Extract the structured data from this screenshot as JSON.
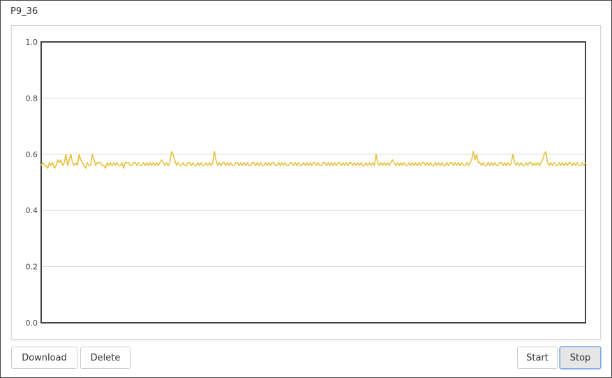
{
  "title": "P9_36",
  "buttons": {
    "download": "Download",
    "delete": "Delete",
    "start": "Start",
    "stop": "Stop"
  },
  "colors": {
    "series": "#e6c13e",
    "grid": "#d9d9d9",
    "axis": "#444444"
  },
  "chart_data": {
    "type": "line",
    "title": "",
    "xlabel": "",
    "ylabel": "",
    "ylim": [
      0,
      1
    ],
    "yticks": [
      "0.0",
      "0.2",
      "0.4",
      "0.6",
      "0.8",
      "1.0"
    ],
    "grid": true,
    "series": [
      {
        "name": "",
        "color": "#e6c13e",
        "values": [
          0.56,
          0.57,
          0.56,
          0.56,
          0.55,
          0.57,
          0.56,
          0.57,
          0.55,
          0.56,
          0.58,
          0.57,
          0.58,
          0.56,
          0.57,
          0.6,
          0.56,
          0.58,
          0.6,
          0.57,
          0.56,
          0.57,
          0.56,
          0.6,
          0.58,
          0.57,
          0.56,
          0.55,
          0.57,
          0.56,
          0.56,
          0.6,
          0.58,
          0.56,
          0.57,
          0.57,
          0.57,
          0.56,
          0.56,
          0.55,
          0.57,
          0.56,
          0.57,
          0.56,
          0.57,
          0.56,
          0.57,
          0.56,
          0.56,
          0.57,
          0.55,
          0.57,
          0.57,
          0.57,
          0.56,
          0.56,
          0.57,
          0.57,
          0.56,
          0.57,
          0.56,
          0.56,
          0.57,
          0.56,
          0.57,
          0.56,
          0.57,
          0.56,
          0.57,
          0.56,
          0.57,
          0.56,
          0.57,
          0.58,
          0.57,
          0.56,
          0.57,
          0.56,
          0.57,
          0.61,
          0.6,
          0.58,
          0.56,
          0.57,
          0.56,
          0.56,
          0.57,
          0.56,
          0.56,
          0.57,
          0.57,
          0.56,
          0.57,
          0.56,
          0.56,
          0.57,
          0.56,
          0.57,
          0.56,
          0.56,
          0.57,
          0.56,
          0.57,
          0.56,
          0.57,
          0.61,
          0.58,
          0.56,
          0.57,
          0.56,
          0.57,
          0.57,
          0.56,
          0.57,
          0.56,
          0.57,
          0.56,
          0.56,
          0.57,
          0.57,
          0.56,
          0.57,
          0.56,
          0.57,
          0.56,
          0.57,
          0.56,
          0.56,
          0.57,
          0.57,
          0.56,
          0.57,
          0.56,
          0.57,
          0.56,
          0.56,
          0.57,
          0.56,
          0.57,
          0.56,
          0.57,
          0.57,
          0.56,
          0.56,
          0.57,
          0.56,
          0.57,
          0.56,
          0.57,
          0.56,
          0.56,
          0.57,
          0.57,
          0.56,
          0.57,
          0.56,
          0.57,
          0.56,
          0.56,
          0.57,
          0.56,
          0.57,
          0.56,
          0.57,
          0.56,
          0.57,
          0.57,
          0.56,
          0.57,
          0.56,
          0.56,
          0.57,
          0.57,
          0.56,
          0.57,
          0.56,
          0.57,
          0.56,
          0.57,
          0.56,
          0.57,
          0.57,
          0.56,
          0.57,
          0.56,
          0.57,
          0.56,
          0.57,
          0.57,
          0.56,
          0.57,
          0.56,
          0.57,
          0.56,
          0.57,
          0.56,
          0.56,
          0.57,
          0.56,
          0.57,
          0.56,
          0.57,
          0.56,
          0.6,
          0.57,
          0.56,
          0.57,
          0.56,
          0.57,
          0.56,
          0.57,
          0.56,
          0.57,
          0.58,
          0.57,
          0.56,
          0.57,
          0.56,
          0.57,
          0.56,
          0.57,
          0.56,
          0.56,
          0.57,
          0.56,
          0.57,
          0.56,
          0.57,
          0.56,
          0.57,
          0.56,
          0.57,
          0.57,
          0.56,
          0.57,
          0.56,
          0.57,
          0.56,
          0.56,
          0.57,
          0.56,
          0.57,
          0.56,
          0.57,
          0.56,
          0.56,
          0.57,
          0.56,
          0.57,
          0.57,
          0.56,
          0.57,
          0.56,
          0.57,
          0.56,
          0.57,
          0.56,
          0.56,
          0.57,
          0.56,
          0.57,
          0.58,
          0.61,
          0.58,
          0.6,
          0.57,
          0.57,
          0.56,
          0.57,
          0.56,
          0.56,
          0.57,
          0.56,
          0.57,
          0.56,
          0.57,
          0.56,
          0.56,
          0.57,
          0.57,
          0.56,
          0.57,
          0.56,
          0.57,
          0.56,
          0.57,
          0.6,
          0.57,
          0.56,
          0.57,
          0.56,
          0.57,
          0.56,
          0.56,
          0.57,
          0.56,
          0.57,
          0.57,
          0.56,
          0.57,
          0.56,
          0.57,
          0.56,
          0.57,
          0.58,
          0.6,
          0.61,
          0.57,
          0.56,
          0.57,
          0.56,
          0.57,
          0.56,
          0.56,
          0.57,
          0.56,
          0.57,
          0.56,
          0.57,
          0.56,
          0.57,
          0.57,
          0.56,
          0.57,
          0.56,
          0.57,
          0.56,
          0.56,
          0.57,
          0.56,
          0.57
        ]
      }
    ]
  }
}
